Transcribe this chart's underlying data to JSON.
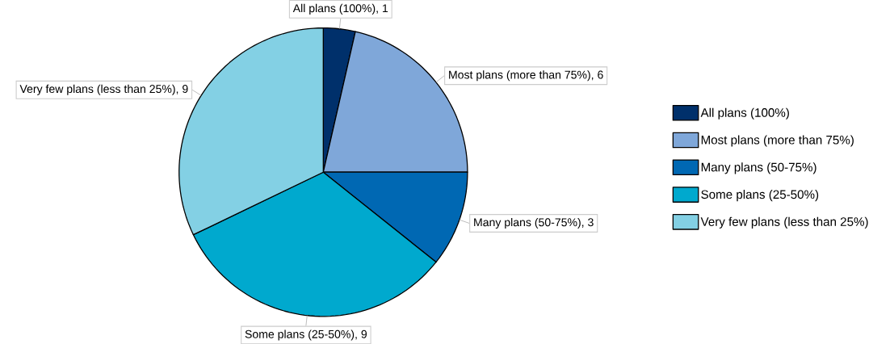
{
  "chart_data": {
    "type": "pie",
    "categories": [
      "All plans (100%)",
      "Most plans (more than 75%)",
      "Many plans (50-75%)",
      "Some plans (25-50%)",
      "Very few plans (less than 25%)"
    ],
    "values": [
      1,
      6,
      3,
      9,
      9
    ],
    "colors": [
      "#00306b",
      "#7fa7d9",
      "#0068b3",
      "#00a9ce",
      "#83d0e4"
    ],
    "value_labels": [
      "All plans (100%), 1",
      "Most plans (more than 75%), 6",
      "Many plans (50-75%), 3",
      "Some plans (25-50%), 9",
      "Very few plans (less than 25%), 9"
    ],
    "legend": "right"
  }
}
